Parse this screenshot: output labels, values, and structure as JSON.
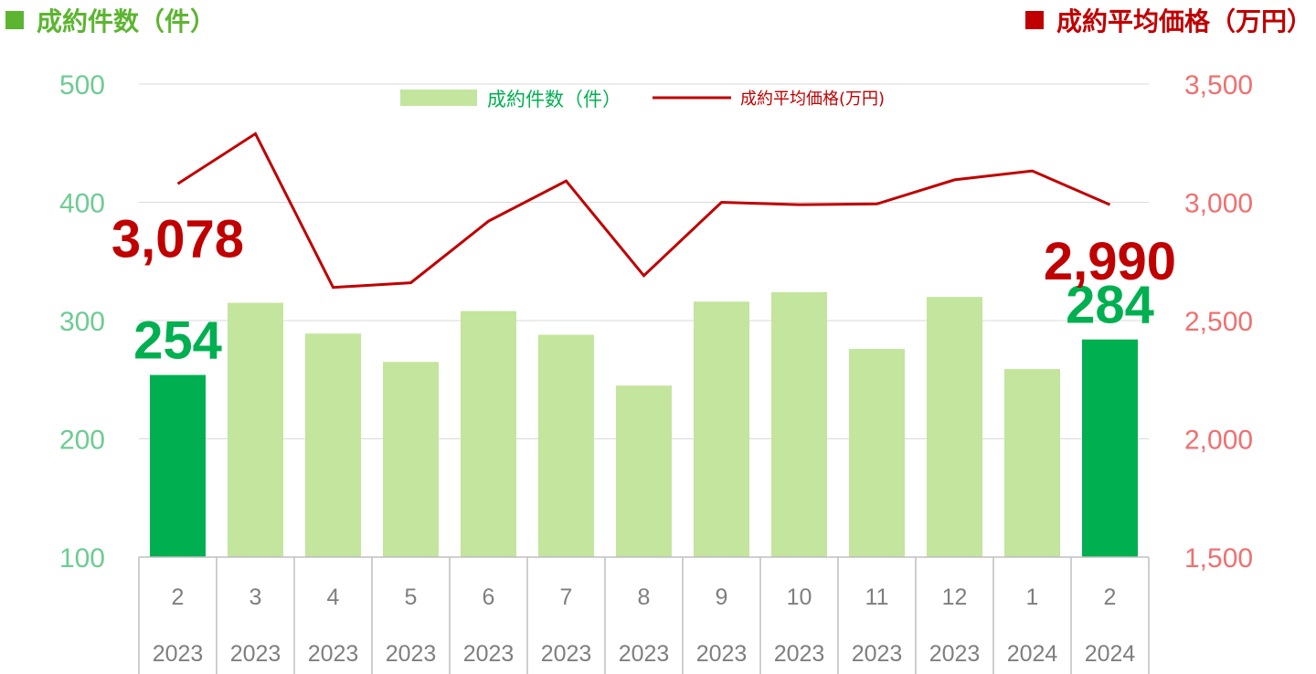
{
  "header": {
    "left_title": "成約件数（件）",
    "right_title": "成約平均価格（万円）"
  },
  "colors": {
    "bar_highlight": "#00b050",
    "bar_normal": "#c3e59d",
    "line": "#c00000",
    "left_axis": "#6dcc92",
    "right_axis": "#f07070",
    "header_left": "#5cb531",
    "header_right": "#c00000"
  },
  "chart_data": {
    "type": "bar+line",
    "categories": [
      {
        "month": "2",
        "year": "2023"
      },
      {
        "month": "3",
        "year": "2023"
      },
      {
        "month": "4",
        "year": "2023"
      },
      {
        "month": "5",
        "year": "2023"
      },
      {
        "month": "6",
        "year": "2023"
      },
      {
        "month": "7",
        "year": "2023"
      },
      {
        "month": "8",
        "year": "2023"
      },
      {
        "month": "9",
        "year": "2023"
      },
      {
        "month": "10",
        "year": "2023"
      },
      {
        "month": "11",
        "year": "2023"
      },
      {
        "month": "12",
        "year": "2023"
      },
      {
        "month": "1",
        "year": "2024"
      },
      {
        "month": "2",
        "year": "2024"
      }
    ],
    "series": [
      {
        "name": "成約件数（件）",
        "kind": "bar",
        "axis": "left",
        "values": [
          254,
          315,
          289,
          265,
          308,
          288,
          245,
          316,
          324,
          276,
          320,
          259,
          284
        ],
        "highlight_indices": [
          0,
          12
        ]
      },
      {
        "name": "成約平均価格(万円)",
        "kind": "line",
        "axis": "right",
        "values": [
          3078,
          3290,
          2640,
          2660,
          2920,
          3090,
          2690,
          3000,
          2990,
          2993,
          3095,
          3133,
          2990
        ]
      }
    ],
    "left_axis": {
      "range": [
        100,
        500
      ],
      "ticks": [
        "100",
        "200",
        "300",
        "400",
        "500"
      ]
    },
    "right_axis": {
      "range": [
        1500,
        3500
      ],
      "ticks": [
        "1,500",
        "2,000",
        "2,500",
        "3,000",
        "3,500"
      ]
    },
    "gridlines": true,
    "legend_position": "top-center",
    "data_labels": [
      {
        "series": 0,
        "index": 0,
        "text": "254"
      },
      {
        "series": 0,
        "index": 12,
        "text": "284"
      },
      {
        "series": 1,
        "index": 0,
        "text": "3,078"
      },
      {
        "series": 1,
        "index": 12,
        "text": "2,990"
      }
    ]
  }
}
